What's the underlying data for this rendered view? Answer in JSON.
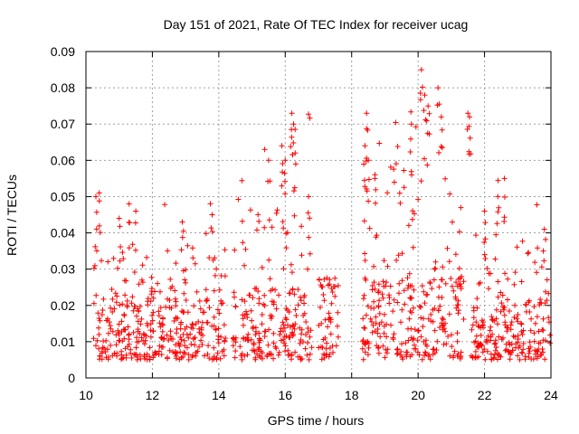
{
  "chart_data": {
    "type": "scatter",
    "title": "Day 151 of 2021, Rate Of TEC Index for receiver ucag",
    "xlabel": "GPS time / hours",
    "ylabel": "ROTI / TECUs",
    "xlim": [
      10,
      24
    ],
    "ylim": [
      0,
      0.09
    ],
    "grid": true,
    "marker": "plus",
    "colors": {
      "series": "#ff0000",
      "grid": "#a0a0a0",
      "axis": "#000000"
    },
    "x_ticks": [
      10,
      12,
      14,
      16,
      18,
      20,
      22,
      24
    ],
    "x_tick_labels": [
      "10",
      "12",
      "14",
      "16",
      "18",
      "20",
      "22",
      "24"
    ],
    "y_ticks": [
      0,
      0.01,
      0.02,
      0.03,
      0.04,
      0.05,
      0.06,
      0.07,
      0.08,
      0.09
    ],
    "y_tick_labels": [
      "0",
      "0.01",
      "0.02",
      "0.03",
      "0.04",
      "0.05",
      "0.06",
      "0.07",
      "0.08",
      "0.09"
    ],
    "data_segments": [
      {
        "x_range": [
          10.2,
          14.2
        ],
        "typical_range": [
          0.005,
          0.022
        ],
        "max": 0.05
      },
      {
        "x_range": [
          14.4,
          16.8
        ],
        "typical_range": [
          0.005,
          0.025
        ],
        "max": 0.073
      },
      {
        "x_range": [
          17.0,
          17.6
        ],
        "typical_range": [
          0.005,
          0.025
        ],
        "max": 0.03
      },
      {
        "x_range": [
          18.3,
          21.4
        ],
        "typical_range": [
          0.005,
          0.028
        ],
        "max": 0.085
      },
      {
        "x_range": [
          21.6,
          24.0
        ],
        "typical_range": [
          0.005,
          0.022
        ],
        "max": 0.055
      }
    ],
    "peaks": [
      {
        "x": 10.3,
        "y": 0.05
      },
      {
        "x": 10.4,
        "y": 0.051
      },
      {
        "x": 11.0,
        "y": 0.044
      },
      {
        "x": 11.3,
        "y": 0.048
      },
      {
        "x": 11.5,
        "y": 0.046
      },
      {
        "x": 12.9,
        "y": 0.043
      },
      {
        "x": 13.8,
        "y": 0.045
      },
      {
        "x": 15.5,
        "y": 0.06
      },
      {
        "x": 15.9,
        "y": 0.064
      },
      {
        "x": 16.0,
        "y": 0.06
      },
      {
        "x": 16.2,
        "y": 0.073
      },
      {
        "x": 16.25,
        "y": 0.07
      },
      {
        "x": 16.3,
        "y": 0.062
      },
      {
        "x": 16.7,
        "y": 0.05
      },
      {
        "x": 18.4,
        "y": 0.064
      },
      {
        "x": 18.45,
        "y": 0.073
      },
      {
        "x": 18.5,
        "y": 0.06
      },
      {
        "x": 18.7,
        "y": 0.055
      },
      {
        "x": 19.8,
        "y": 0.07
      },
      {
        "x": 20.1,
        "y": 0.085
      },
      {
        "x": 20.2,
        "y": 0.078
      },
      {
        "x": 20.3,
        "y": 0.075
      },
      {
        "x": 20.6,
        "y": 0.08
      },
      {
        "x": 20.7,
        "y": 0.072
      },
      {
        "x": 21.5,
        "y": 0.073
      },
      {
        "x": 21.55,
        "y": 0.072
      },
      {
        "x": 22.0,
        "y": 0.046
      },
      {
        "x": 22.4,
        "y": 0.05
      },
      {
        "x": 22.6,
        "y": 0.055
      },
      {
        "x": 23.8,
        "y": 0.041
      }
    ]
  }
}
